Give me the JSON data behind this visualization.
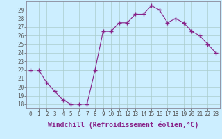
{
  "x": [
    0,
    1,
    2,
    3,
    4,
    5,
    6,
    7,
    8,
    9,
    10,
    11,
    12,
    13,
    14,
    15,
    16,
    17,
    18,
    19,
    20,
    21,
    22,
    23
  ],
  "y": [
    22,
    22,
    20.5,
    19.5,
    18.5,
    18,
    18,
    18,
    22,
    26.5,
    26.5,
    27.5,
    27.5,
    28.5,
    28.5,
    29.5,
    29,
    27.5,
    28,
    27.5,
    26.5,
    26,
    25,
    24
  ],
  "line_color": "#882288",
  "marker": "+",
  "marker_size": 4,
  "marker_color": "#882288",
  "background_color": "#cceeff",
  "grid_color": "#aacccc",
  "xlabel": "Windchill (Refroidissement éolien,°C)",
  "xlabel_fontsize": 7,
  "yticks": [
    18,
    19,
    20,
    21,
    22,
    23,
    24,
    25,
    26,
    27,
    28,
    29
  ],
  "ylim": [
    17.5,
    30.0
  ],
  "xlim": [
    -0.5,
    23.5
  ],
  "xticks": [
    0,
    1,
    2,
    3,
    4,
    5,
    6,
    7,
    8,
    9,
    10,
    11,
    12,
    13,
    14,
    15,
    16,
    17,
    18,
    19,
    20,
    21,
    22,
    23
  ],
  "tick_fontsize": 5.5,
  "fig_bg": "#cceeff",
  "spine_color": "#888899"
}
